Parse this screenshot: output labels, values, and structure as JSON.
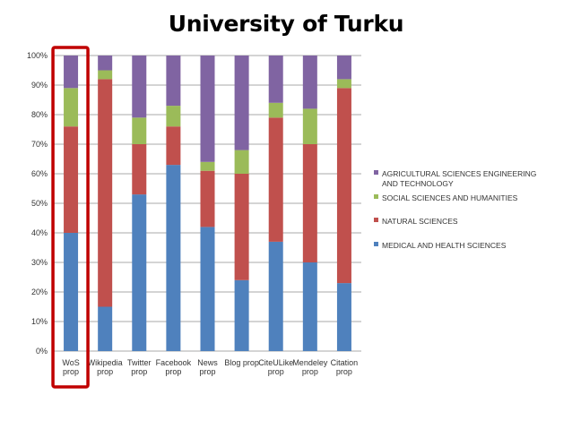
{
  "chart_data": {
    "type": "bar",
    "stacked": true,
    "title": "University of Turku",
    "xlabel": "",
    "ylabel": "",
    "ylim": [
      0,
      100
    ],
    "y_ticks": [
      "0%",
      "10%",
      "20%",
      "30%",
      "40%",
      "50%",
      "60%",
      "70%",
      "80%",
      "90%",
      "100%"
    ],
    "grid": true,
    "legend_position": "right",
    "categories": [
      [
        "WoS",
        "prop"
      ],
      [
        "Wikipedia",
        "prop"
      ],
      [
        "Twitter",
        "prop"
      ],
      [
        "Facebook",
        "prop"
      ],
      [
        "News",
        "prop"
      ],
      [
        "Blog prop"
      ],
      [
        "CiteULike",
        "prop"
      ],
      [
        "Mendeley",
        "prop"
      ],
      [
        "Citation",
        "prop"
      ]
    ],
    "series": [
      {
        "name": "MEDICAL AND HEALTH SCIENCES",
        "color": "#4f81bd",
        "values": [
          40,
          15,
          53,
          63,
          42,
          24,
          37,
          30,
          23
        ]
      },
      {
        "name": "NATURAL SCIENCES",
        "color": "#c0504d",
        "values": [
          36,
          77,
          17,
          13,
          19,
          36,
          42,
          40,
          66
        ]
      },
      {
        "name": "SOCIAL SCIENCES AND HUMANITIES",
        "color": "#9bbb59",
        "values": [
          13,
          3,
          9,
          7,
          3,
          8,
          5,
          12,
          3
        ]
      },
      {
        "name": "AGRICULTURAL SCIENCES ENGINEERING AND TECHNOLOGY",
        "color": "#8064a2",
        "values": [
          11,
          5,
          21,
          17,
          36,
          32,
          16,
          18,
          8
        ]
      }
    ],
    "highlight": {
      "category_index": 0,
      "color": "#c00000"
    }
  }
}
